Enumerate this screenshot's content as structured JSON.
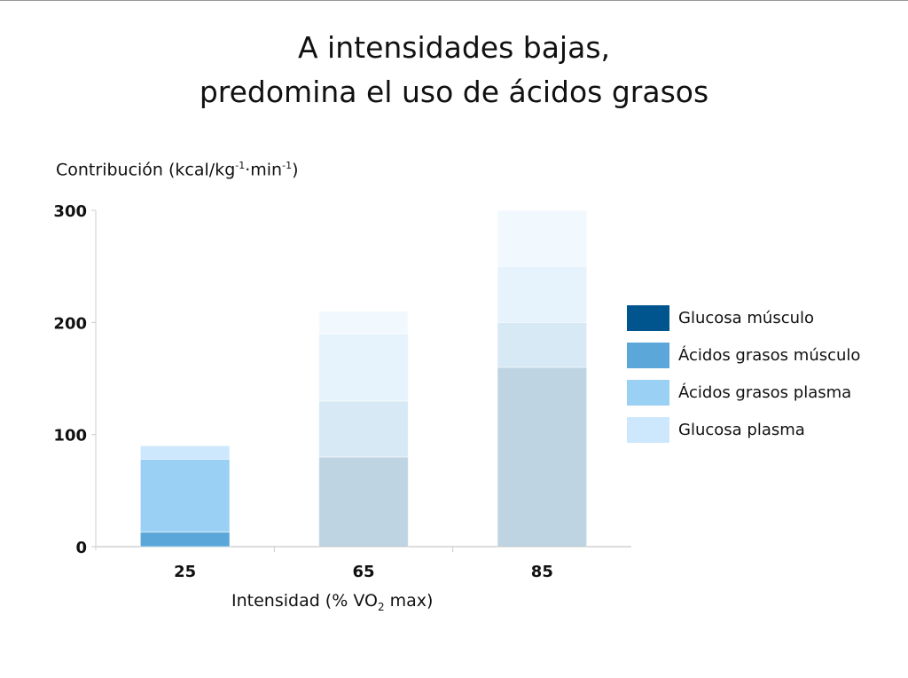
{
  "title_lines": [
    "A intensidades bajas,",
    "predomina el uso de ácidos grasos"
  ],
  "chart_data": {
    "type": "bar",
    "stacked": true,
    "title": "A intensidades bajas, predomina el uso de ácidos grasos",
    "ylabel": {
      "text": "Contribución (kcal/kg",
      "sup1": "-1",
      "mid": "·min",
      "sup2": "-1",
      "end": ")"
    },
    "xlabel": {
      "text": "Intensidad (% VO",
      "sub": "2",
      "end": " max)"
    },
    "categories": [
      "25",
      "65",
      "85"
    ],
    "faded_categories": [
      "65",
      "85"
    ],
    "ylim": [
      0,
      300
    ],
    "yticks": [
      "0",
      "100",
      "200",
      "300"
    ],
    "ytick_values": [
      0,
      100,
      200,
      300
    ],
    "legend_position": "right",
    "series": [
      {
        "name": "Glucosa músculo",
        "color": "#00558f",
        "values": [
          0,
          80,
          160
        ]
      },
      {
        "name": "Ácidos grasos músculo",
        "color": "#5ba7d9",
        "values": [
          13,
          50,
          40
        ]
      },
      {
        "name": "Ácidos grasos plasma",
        "color": "#9bd0f5",
        "values": [
          65,
          60,
          50
        ]
      },
      {
        "name": "Glucosa plasma",
        "color": "#cde8fd",
        "values": [
          12,
          20,
          50
        ]
      }
    ]
  }
}
